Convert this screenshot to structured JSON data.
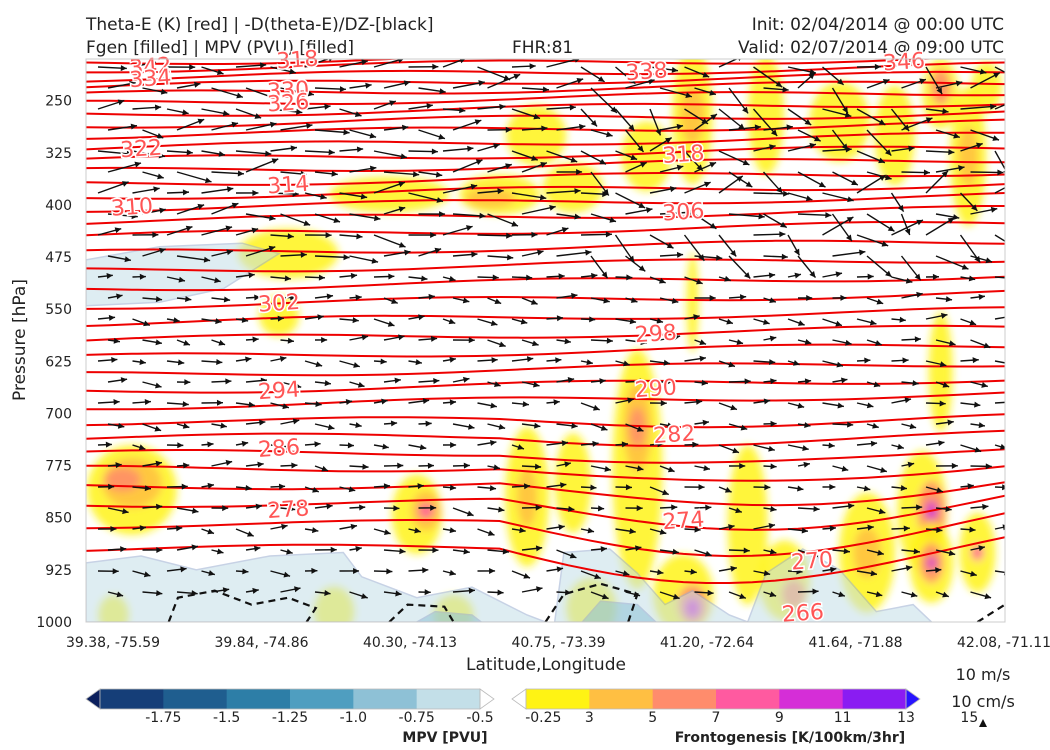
{
  "header": {
    "left_line1": "Theta-E (K) [red] | -D(theta-E)/DZ-[black]",
    "left_line2": "Fgen [filled] | MPV (PVU) [filled]",
    "center": "FHR:81",
    "right_line1": "Init: 02/04/2014 @ 00:00 UTC",
    "right_line2": "Valid: 02/07/2014 @ 09:00 UTC"
  },
  "chart_data": {
    "type": "contour",
    "xlabel": "Latitude,Longitude",
    "ylabel": "Pressure [hPa]",
    "x_ticks": [
      "39.38, -75.59",
      "39.84, -74.86",
      "40.30, -74.13",
      "40.75, -73.39",
      "41.20, -72.64",
      "41.64, -71.88",
      "42.08, -71.11"
    ],
    "y_ticks": [
      250,
      325,
      400,
      475,
      550,
      625,
      700,
      775,
      850,
      925,
      1000
    ],
    "ylim": [
      1000,
      190
    ],
    "theta_e_labels": [
      {
        "value": "342",
        "x": 0.07,
        "p": 200
      },
      {
        "value": "334",
        "x": 0.07,
        "p": 217
      },
      {
        "value": "318",
        "x": 0.23,
        "p": 190
      },
      {
        "value": "330",
        "x": 0.22,
        "p": 234
      },
      {
        "value": "326",
        "x": 0.22,
        "p": 252
      },
      {
        "value": "322",
        "x": 0.06,
        "p": 318
      },
      {
        "value": "314",
        "x": 0.22,
        "p": 370
      },
      {
        "value": "310",
        "x": 0.05,
        "p": 402
      },
      {
        "value": "302",
        "x": 0.21,
        "p": 540
      },
      {
        "value": "294",
        "x": 0.21,
        "p": 666
      },
      {
        "value": "286",
        "x": 0.21,
        "p": 749
      },
      {
        "value": "278",
        "x": 0.22,
        "p": 837
      },
      {
        "value": "338",
        "x": 0.61,
        "p": 207
      },
      {
        "value": "346",
        "x": 0.89,
        "p": 193
      },
      {
        "value": "318",
        "x": 0.65,
        "p": 326
      },
      {
        "value": "306",
        "x": 0.65,
        "p": 409
      },
      {
        "value": "298",
        "x": 0.62,
        "p": 584
      },
      {
        "value": "290",
        "x": 0.62,
        "p": 663
      },
      {
        "value": "282",
        "x": 0.64,
        "p": 729
      },
      {
        "value": "274",
        "x": 0.65,
        "p": 853
      },
      {
        "value": "270",
        "x": 0.79,
        "p": 911
      },
      {
        "value": "266",
        "x": 0.78,
        "p": 986
      }
    ],
    "mpv_colorbar": {
      "label": "MPV [PVU]",
      "ticks": [
        "-1.75",
        "-1.5",
        "-1.25",
        "-1.0",
        "-0.75",
        "-0.5",
        "-0.25"
      ],
      "colors": [
        "#0b1f5c",
        "#153e78",
        "#1f5e8f",
        "#2d7ea7",
        "#4f9ec0",
        "#8ec1d6",
        "#c3dfe8",
        "#ffffff"
      ]
    },
    "fgen_colorbar": {
      "label": "Frontogenesis [K/100km/3hr]",
      "ticks": [
        "3",
        "5",
        "7",
        "9",
        "11",
        "13",
        "15"
      ],
      "colors": [
        "#ffffff",
        "#fff314",
        "#ffbf42",
        "#ff8c6c",
        "#ff5aa0",
        "#d52ed7",
        "#8a1cf2",
        "#2814ff"
      ]
    },
    "vector_key": {
      "label1": "10 m/s",
      "label2": "10 cm/s"
    }
  },
  "colors": {
    "theta_e": "#ee0000",
    "theta_e_label": "#ff5555",
    "vector": "#111111",
    "mpv_outline": "#9aaed0"
  }
}
